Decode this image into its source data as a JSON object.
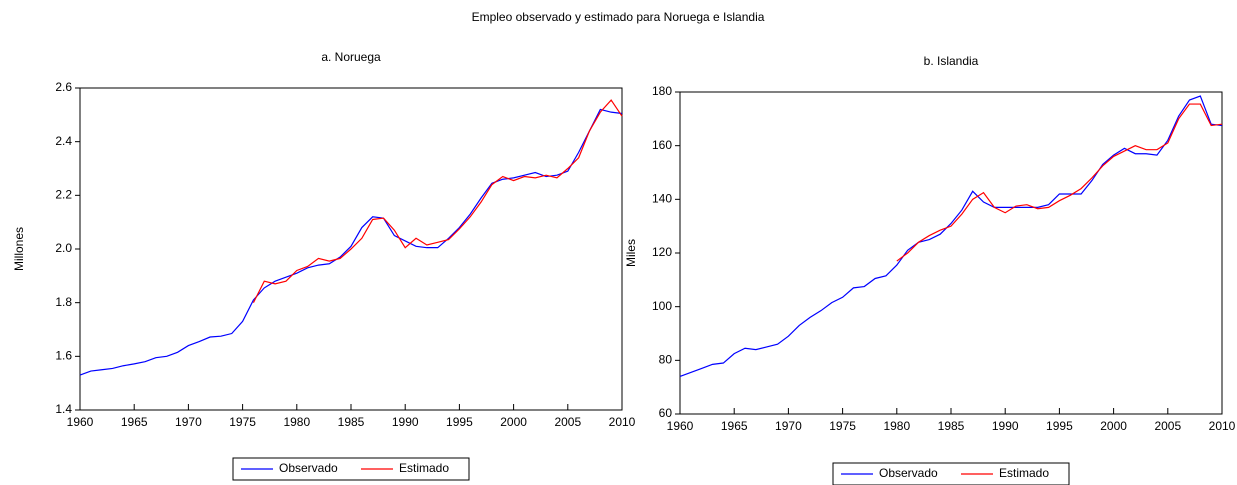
{
  "title": "Empleo observado y estimado para Noruega e Islandia",
  "chart_data": [
    {
      "type": "line",
      "title": "a. Noruega",
      "ylabel": "Millones",
      "x": [
        1960,
        1961,
        1962,
        1963,
        1964,
        1965,
        1966,
        1967,
        1968,
        1969,
        1970,
        1971,
        1972,
        1973,
        1974,
        1975,
        1976,
        1977,
        1978,
        1979,
        1980,
        1981,
        1982,
        1983,
        1984,
        1985,
        1986,
        1987,
        1988,
        1989,
        1990,
        1991,
        1992,
        1993,
        1994,
        1995,
        1996,
        1997,
        1998,
        1999,
        2000,
        2001,
        2002,
        2003,
        2004,
        2005,
        2006,
        2007,
        2008,
        2009,
        2010
      ],
      "series": [
        {
          "name": "Observado",
          "color": "#0000ff",
          "values": [
            1.53,
            1.545,
            1.55,
            1.555,
            1.565,
            1.572,
            1.58,
            1.595,
            1.6,
            1.615,
            1.64,
            1.655,
            1.672,
            1.675,
            1.685,
            1.73,
            1.81,
            1.855,
            1.88,
            1.895,
            1.91,
            1.93,
            1.94,
            1.945,
            1.97,
            2.01,
            2.08,
            2.12,
            2.115,
            2.05,
            2.03,
            2.01,
            2.005,
            2.005,
            2.04,
            2.08,
            2.13,
            2.19,
            2.245,
            2.26,
            2.265,
            2.275,
            2.285,
            2.27,
            2.275,
            2.29,
            2.36,
            2.44,
            2.52,
            2.51,
            2.505
          ]
        },
        {
          "name": "Estimado",
          "color": "#ff0000",
          "values": [
            null,
            null,
            null,
            null,
            null,
            null,
            null,
            null,
            null,
            null,
            null,
            null,
            null,
            null,
            null,
            null,
            1.8,
            1.88,
            1.87,
            1.88,
            1.92,
            1.935,
            1.965,
            1.955,
            1.965,
            2.0,
            2.04,
            2.11,
            2.115,
            2.07,
            2.005,
            2.04,
            2.015,
            2.025,
            2.035,
            2.075,
            2.12,
            2.175,
            2.24,
            2.27,
            2.255,
            2.27,
            2.265,
            2.275,
            2.265,
            2.3,
            2.34,
            2.44,
            2.51,
            2.555,
            2.495
          ]
        }
      ],
      "xlim": [
        1960,
        2010
      ],
      "xticks": [
        1960,
        1965,
        1970,
        1975,
        1980,
        1985,
        1990,
        1995,
        2000,
        2005,
        2010
      ],
      "ylim": [
        1.4,
        2.6
      ],
      "yticks": [
        1.4,
        1.6,
        1.8,
        {
          "value": 2,
          "label": "2.0"
        },
        2.2,
        2.4,
        2.6
      ],
      "legend": "bottom"
    },
    {
      "type": "line",
      "title": "b. Islandia",
      "ylabel": "Miles",
      "x": [
        1960,
        1961,
        1962,
        1963,
        1964,
        1965,
        1966,
        1967,
        1968,
        1969,
        1970,
        1971,
        1972,
        1973,
        1974,
        1975,
        1976,
        1977,
        1978,
        1979,
        1980,
        1981,
        1982,
        1983,
        1984,
        1985,
        1986,
        1987,
        1988,
        1989,
        1990,
        1991,
        1992,
        1993,
        1994,
        1995,
        1996,
        1997,
        1998,
        1999,
        2000,
        2001,
        2002,
        2003,
        2004,
        2005,
        2006,
        2007,
        2008,
        2009,
        2010
      ],
      "series": [
        {
          "name": "Observado",
          "color": "#0000ff",
          "values": [
            74,
            75.5,
            77,
            78.5,
            79,
            82.5,
            84.5,
            84,
            85,
            86,
            89,
            93,
            96,
            98.5,
            101.5,
            103.5,
            107,
            107.5,
            110.5,
            111.5,
            115.5,
            121,
            124,
            125,
            127,
            131,
            136,
            143,
            139,
            137,
            137,
            137,
            137,
            137,
            138,
            142,
            142,
            142,
            147,
            153,
            156.5,
            159,
            157,
            157,
            156.5,
            162,
            171,
            177,
            178.5,
            168,
            167.5
          ]
        },
        {
          "name": "Estimado",
          "color": "#ff0000",
          "values": [
            null,
            null,
            null,
            null,
            null,
            null,
            null,
            null,
            null,
            null,
            null,
            null,
            null,
            null,
            null,
            null,
            null,
            null,
            null,
            null,
            117,
            120,
            124,
            126.5,
            128.5,
            130,
            134.5,
            140,
            142.5,
            137,
            135,
            137.5,
            138,
            136.5,
            137,
            139.5,
            141.5,
            144,
            148,
            152.5,
            156,
            158,
            160,
            158.5,
            158.5,
            161,
            170,
            175.5,
            175.5,
            167.5,
            168
          ]
        }
      ],
      "xlim": [
        1960,
        2010
      ],
      "xticks": [
        1960,
        1965,
        1970,
        1975,
        1980,
        1985,
        1990,
        1995,
        2000,
        2005,
        2010
      ],
      "ylim": [
        60,
        180
      ],
      "yticks": [
        60,
        80,
        100,
        120,
        140,
        160,
        180
      ],
      "legend": "bottom"
    }
  ]
}
